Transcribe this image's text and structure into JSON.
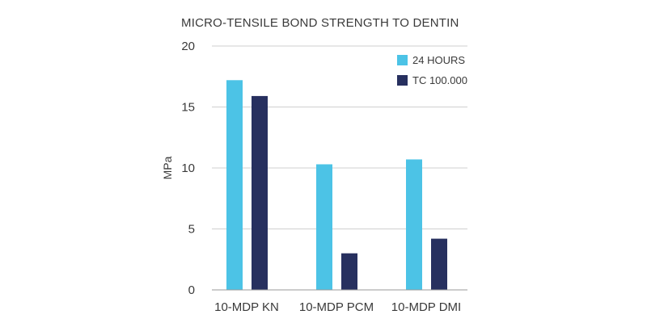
{
  "chart_data": {
    "type": "bar",
    "title": "MICRO-TENSILE BOND STRENGTH TO DENTIN",
    "xlabel": "",
    "ylabel": "MPa",
    "ylim": [
      0,
      20
    ],
    "yticks": [
      "0",
      "5",
      "10",
      "15",
      "20"
    ],
    "grid": true,
    "legend_position": "top-right",
    "categories": [
      "10-MDP KN",
      "10-MDP PCM",
      "10-MDP DMI"
    ],
    "series": [
      {
        "name": "24 HOURS",
        "color": "#4cc3e6",
        "values": [
          17.2,
          10.3,
          10.7
        ]
      },
      {
        "name": "TC 100.000",
        "color": "#27305f",
        "values": [
          15.9,
          3.0,
          4.2
        ]
      }
    ]
  }
}
